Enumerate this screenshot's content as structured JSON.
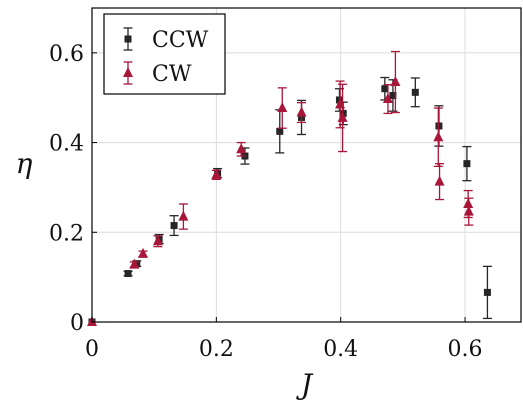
{
  "chart_data": {
    "type": "scatter",
    "xlabel": "J",
    "ylabel": "η",
    "xlim": [
      0,
      0.69
    ],
    "ylim": [
      0,
      0.7
    ],
    "xticks": [
      0,
      0.2,
      0.4,
      0.6
    ],
    "yticks": [
      0,
      0.2,
      0.4,
      0.6
    ],
    "xtick_labels": [
      "0",
      "0.2",
      "0.4",
      "0.6"
    ],
    "ytick_labels": [
      "0",
      "0.2",
      "0.4",
      "0.6"
    ],
    "grid": true,
    "legend_position": "top-left",
    "series": [
      {
        "name": "CCW",
        "marker": "square",
        "color": "#262626",
        "points": [
          {
            "x": 0.0,
            "y": 0.0,
            "err": 0.0
          },
          {
            "x": 0.058,
            "y": 0.108,
            "err": 0.005
          },
          {
            "x": 0.072,
            "y": 0.13,
            "err": 0.006
          },
          {
            "x": 0.108,
            "y": 0.185,
            "err": 0.01
          },
          {
            "x": 0.132,
            "y": 0.215,
            "err": 0.022
          },
          {
            "x": 0.202,
            "y": 0.332,
            "err": 0.01
          },
          {
            "x": 0.246,
            "y": 0.37,
            "err": 0.018
          },
          {
            "x": 0.302,
            "y": 0.425,
            "err": 0.048
          },
          {
            "x": 0.337,
            "y": 0.456,
            "err": 0.038
          },
          {
            "x": 0.398,
            "y": 0.495,
            "err": 0.025
          },
          {
            "x": 0.404,
            "y": 0.465,
            "err": 0.025
          },
          {
            "x": 0.471,
            "y": 0.52,
            "err": 0.025
          },
          {
            "x": 0.484,
            "y": 0.505,
            "err": 0.035
          },
          {
            "x": 0.52,
            "y": 0.512,
            "err": 0.032
          },
          {
            "x": 0.558,
            "y": 0.437,
            "err": 0.045
          },
          {
            "x": 0.603,
            "y": 0.353,
            "err": 0.038
          },
          {
            "x": 0.636,
            "y": 0.066,
            "err": 0.058
          }
        ]
      },
      {
        "name": "CW",
        "marker": "triangle",
        "color": "#a8163a",
        "points": [
          {
            "x": 0.0,
            "y": 0.0,
            "err": 0.0
          },
          {
            "x": 0.068,
            "y": 0.128,
            "err": 0.006
          },
          {
            "x": 0.082,
            "y": 0.152,
            "err": 0.006
          },
          {
            "x": 0.106,
            "y": 0.18,
            "err": 0.012
          },
          {
            "x": 0.147,
            "y": 0.235,
            "err": 0.028
          },
          {
            "x": 0.2,
            "y": 0.328,
            "err": 0.01
          },
          {
            "x": 0.24,
            "y": 0.385,
            "err": 0.015
          },
          {
            "x": 0.306,
            "y": 0.477,
            "err": 0.045
          },
          {
            "x": 0.337,
            "y": 0.467,
            "err": 0.022
          },
          {
            "x": 0.399,
            "y": 0.485,
            "err": 0.052
          },
          {
            "x": 0.403,
            "y": 0.455,
            "err": 0.075
          },
          {
            "x": 0.476,
            "y": 0.497,
            "err": 0.032
          },
          {
            "x": 0.488,
            "y": 0.535,
            "err": 0.068
          },
          {
            "x": 0.557,
            "y": 0.412,
            "err": 0.065
          },
          {
            "x": 0.559,
            "y": 0.313,
            "err": 0.04
          },
          {
            "x": 0.605,
            "y": 0.263,
            "err": 0.03
          },
          {
            "x": 0.606,
            "y": 0.246,
            "err": 0.03
          }
        ]
      }
    ]
  }
}
